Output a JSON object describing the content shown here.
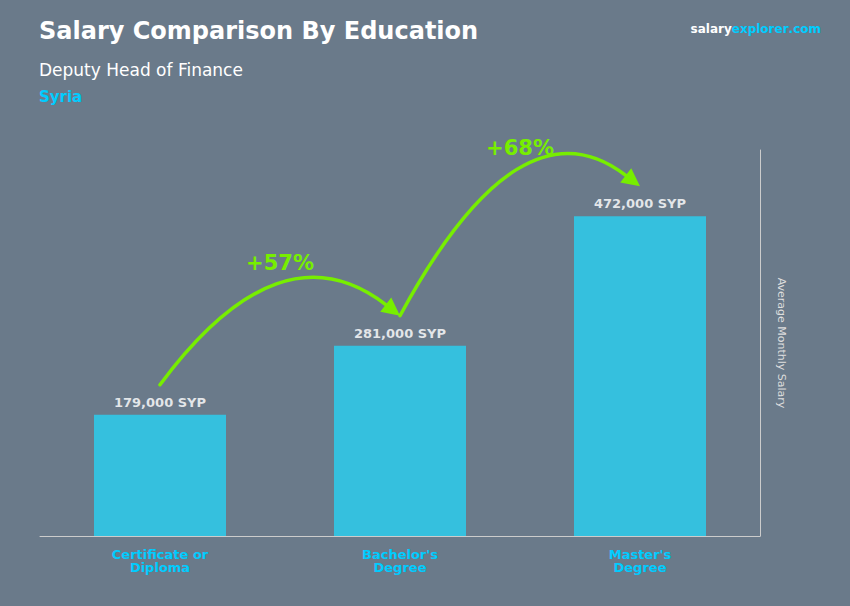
{
  "chart_data": {
    "type": "bar",
    "title": "Salary Comparison By Education",
    "subtitle": [
      "Deputy Head of Finance",
      "Syria"
    ],
    "watermark": [
      "salary",
      "explorer",
      ".com"
    ],
    "ylabel": "Average Monthly Salary",
    "categories": [
      "Certificate or\nDiploma",
      "Bachelor's\nDegree",
      "Master's\nDegree"
    ],
    "values": [
      179000,
      281000,
      472000
    ],
    "value_labels": [
      "179,000 SYP",
      "281,000 SYP",
      "472,000 SYP"
    ],
    "data_labels": true,
    "color": "#29d0f0",
    "ylim": [
      0,
      570000
    ],
    "tick_labels": "x",
    "grid": false,
    "annotations": [
      {
        "text": "+57%",
        "color": "#77ee00"
      },
      {
        "text": "+68%",
        "color": "#77ee00"
      }
    ]
  }
}
